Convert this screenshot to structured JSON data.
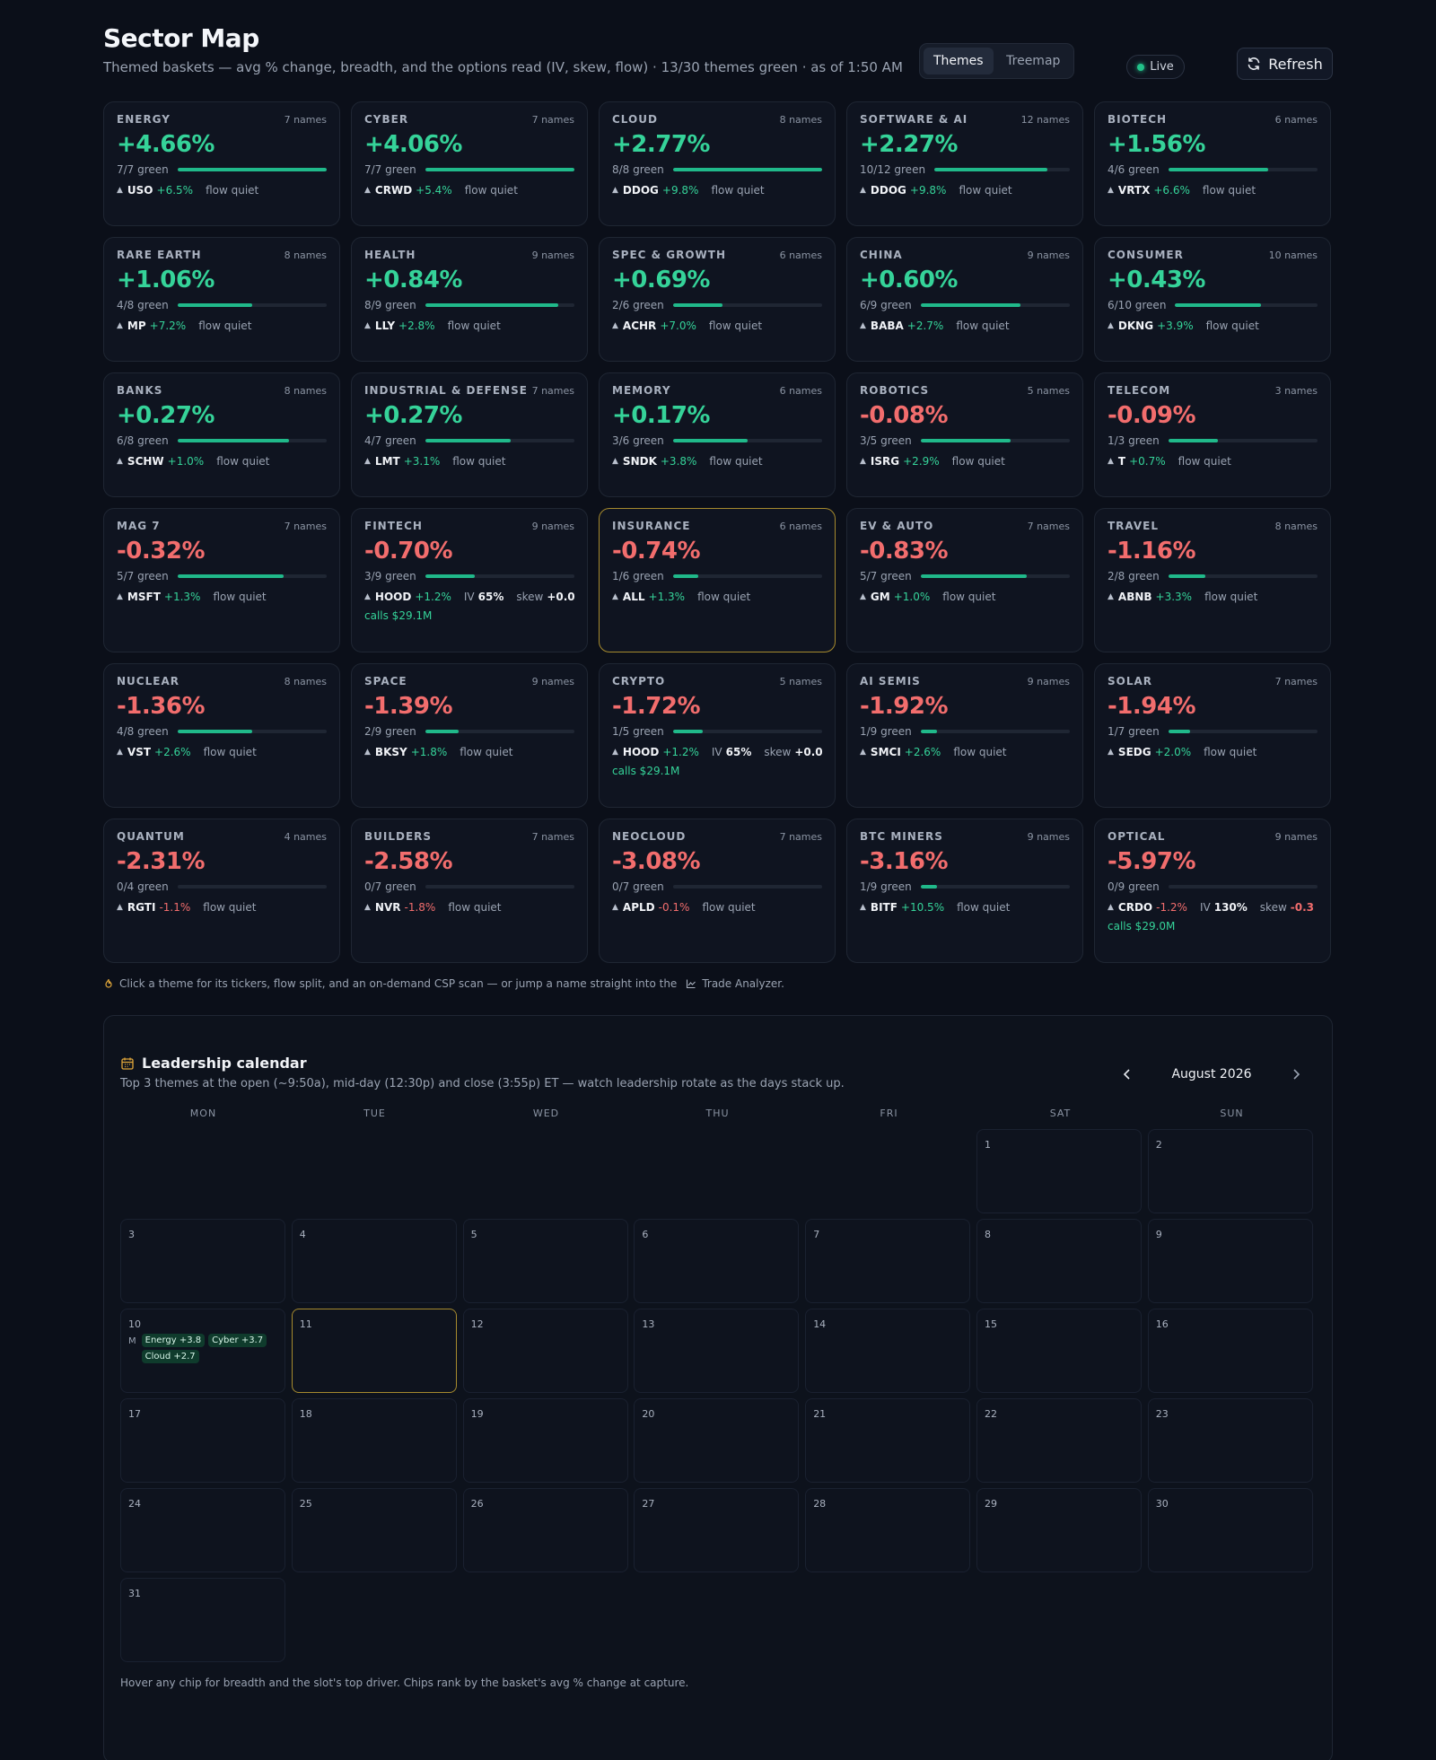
{
  "header": {
    "title": "Sector Map",
    "subtitle": "Themed baskets — avg % change, breadth, and the options read (IV, skew, flow) · 13/30 themes green · as of 1:50 AM",
    "tabs": [
      "Themes",
      "Treemap"
    ],
    "active_tab": "Themes",
    "live_label": "Live",
    "refresh_label": "Refresh"
  },
  "colors": {
    "positive": "#35d399",
    "negative": "#f26d6d",
    "accent": "#a68a2e",
    "bar": "#20b98a"
  },
  "themes": [
    {
      "name": "ENERGY",
      "count": "7 names",
      "pct": "+4.66%",
      "dir": "pos",
      "breadth": "7/7 green",
      "breadth_frac": 1.0,
      "ticker": "USO",
      "tchg": "+6.5%",
      "tdir": "pos",
      "flow": "flow quiet"
    },
    {
      "name": "CYBER",
      "count": "7 names",
      "pct": "+4.06%",
      "dir": "pos",
      "breadth": "7/7 green",
      "breadth_frac": 1.0,
      "ticker": "CRWD",
      "tchg": "+5.4%",
      "tdir": "pos",
      "flow": "flow quiet"
    },
    {
      "name": "CLOUD",
      "count": "8 names",
      "pct": "+2.77%",
      "dir": "pos",
      "breadth": "8/8 green",
      "breadth_frac": 1.0,
      "ticker": "DDOG",
      "tchg": "+9.8%",
      "tdir": "pos",
      "flow": "flow quiet"
    },
    {
      "name": "SOFTWARE & AI",
      "count": "12 names",
      "pct": "+2.27%",
      "dir": "pos",
      "breadth": "10/12 green",
      "breadth_frac": 0.833,
      "ticker": "DDOG",
      "tchg": "+9.8%",
      "tdir": "pos",
      "flow": "flow quiet"
    },
    {
      "name": "BIOTECH",
      "count": "6 names",
      "pct": "+1.56%",
      "dir": "pos",
      "breadth": "4/6 green",
      "breadth_frac": 0.667,
      "ticker": "VRTX",
      "tchg": "+6.6%",
      "tdir": "pos",
      "flow": "flow quiet"
    },
    {
      "name": "RARE EARTH",
      "count": "8 names",
      "pct": "+1.06%",
      "dir": "pos",
      "breadth": "4/8 green",
      "breadth_frac": 0.5,
      "ticker": "MP",
      "tchg": "+7.2%",
      "tdir": "pos",
      "flow": "flow quiet"
    },
    {
      "name": "HEALTH",
      "count": "9 names",
      "pct": "+0.84%",
      "dir": "pos",
      "breadth": "8/9 green",
      "breadth_frac": 0.889,
      "ticker": "LLY",
      "tchg": "+2.8%",
      "tdir": "pos",
      "flow": "flow quiet"
    },
    {
      "name": "SPEC & GROWTH",
      "count": "6 names",
      "pct": "+0.69%",
      "dir": "pos",
      "breadth": "2/6 green",
      "breadth_frac": 0.333,
      "ticker": "ACHR",
      "tchg": "+7.0%",
      "tdir": "pos",
      "flow": "flow quiet"
    },
    {
      "name": "CHINA",
      "count": "9 names",
      "pct": "+0.60%",
      "dir": "pos",
      "breadth": "6/9 green",
      "breadth_frac": 0.667,
      "ticker": "BABA",
      "tchg": "+2.7%",
      "tdir": "pos",
      "flow": "flow quiet"
    },
    {
      "name": "CONSUMER",
      "count": "10 names",
      "pct": "+0.43%",
      "dir": "pos",
      "breadth": "6/10 green",
      "breadth_frac": 0.6,
      "ticker": "DKNG",
      "tchg": "+3.9%",
      "tdir": "pos",
      "flow": "flow quiet"
    },
    {
      "name": "BANKS",
      "count": "8 names",
      "pct": "+0.27%",
      "dir": "pos",
      "breadth": "6/8 green",
      "breadth_frac": 0.75,
      "ticker": "SCHW",
      "tchg": "+1.0%",
      "tdir": "pos",
      "flow": "flow quiet"
    },
    {
      "name": "INDUSTRIAL & DEFENSE",
      "count": "7 names",
      "pct": "+0.27%",
      "dir": "pos",
      "breadth": "4/7 green",
      "breadth_frac": 0.571,
      "ticker": "LMT",
      "tchg": "+3.1%",
      "tdir": "pos",
      "flow": "flow quiet"
    },
    {
      "name": "MEMORY",
      "count": "6 names",
      "pct": "+0.17%",
      "dir": "pos",
      "breadth": "3/6 green",
      "breadth_frac": 0.5,
      "ticker": "SNDK",
      "tchg": "+3.8%",
      "tdir": "pos",
      "flow": "flow quiet"
    },
    {
      "name": "ROBOTICS",
      "count": "5 names",
      "pct": "-0.08%",
      "dir": "neg",
      "breadth": "3/5 green",
      "breadth_frac": 0.6,
      "ticker": "ISRG",
      "tchg": "+2.9%",
      "tdir": "pos",
      "flow": "flow quiet"
    },
    {
      "name": "TELECOM",
      "count": "3 names",
      "pct": "-0.09%",
      "dir": "neg",
      "breadth": "1/3 green",
      "breadth_frac": 0.333,
      "ticker": "T",
      "tchg": "+0.7%",
      "tdir": "pos",
      "flow": "flow quiet"
    },
    {
      "name": "MAG 7",
      "count": "7 names",
      "pct": "-0.32%",
      "dir": "neg",
      "breadth": "5/7 green",
      "breadth_frac": 0.714,
      "ticker": "MSFT",
      "tchg": "+1.3%",
      "tdir": "pos",
      "flow": "flow quiet"
    },
    {
      "name": "FINTECH",
      "count": "9 names",
      "pct": "-0.70%",
      "dir": "neg",
      "breadth": "3/9 green",
      "breadth_frac": 0.333,
      "ticker": "HOOD",
      "tchg": "+1.2%",
      "tdir": "pos",
      "iv_label": "IV",
      "iv": "65%",
      "skew_label": "skew",
      "skew": "+0.0",
      "skew_dir": "zero",
      "calls": "calls $29.1M"
    },
    {
      "name": "INSURANCE",
      "count": "6 names",
      "pct": "-0.74%",
      "dir": "neg",
      "breadth": "1/6 green",
      "breadth_frac": 0.167,
      "ticker": "ALL",
      "tchg": "+1.3%",
      "tdir": "pos",
      "flow": "flow quiet",
      "selected": true
    },
    {
      "name": "EV & AUTO",
      "count": "7 names",
      "pct": "-0.83%",
      "dir": "neg",
      "breadth": "5/7 green",
      "breadth_frac": 0.714,
      "ticker": "GM",
      "tchg": "+1.0%",
      "tdir": "pos",
      "flow": "flow quiet"
    },
    {
      "name": "TRAVEL",
      "count": "8 names",
      "pct": "-1.16%",
      "dir": "neg",
      "breadth": "2/8 green",
      "breadth_frac": 0.25,
      "ticker": "ABNB",
      "tchg": "+3.3%",
      "tdir": "pos",
      "flow": "flow quiet"
    },
    {
      "name": "NUCLEAR",
      "count": "8 names",
      "pct": "-1.36%",
      "dir": "neg",
      "breadth": "4/8 green",
      "breadth_frac": 0.5,
      "ticker": "VST",
      "tchg": "+2.6%",
      "tdir": "pos",
      "flow": "flow quiet"
    },
    {
      "name": "SPACE",
      "count": "9 names",
      "pct": "-1.39%",
      "dir": "neg",
      "breadth": "2/9 green",
      "breadth_frac": 0.222,
      "ticker": "BKSY",
      "tchg": "+1.8%",
      "tdir": "pos",
      "flow": "flow quiet"
    },
    {
      "name": "CRYPTO",
      "count": "5 names",
      "pct": "-1.72%",
      "dir": "neg",
      "breadth": "1/5 green",
      "breadth_frac": 0.2,
      "ticker": "HOOD",
      "tchg": "+1.2%",
      "tdir": "pos",
      "iv_label": "IV",
      "iv": "65%",
      "skew_label": "skew",
      "skew": "+0.0",
      "skew_dir": "zero",
      "calls": "calls $29.1M"
    },
    {
      "name": "AI SEMIS",
      "count": "9 names",
      "pct": "-1.92%",
      "dir": "neg",
      "breadth": "1/9 green",
      "breadth_frac": 0.111,
      "ticker": "SMCI",
      "tchg": "+2.6%",
      "tdir": "pos",
      "flow": "flow quiet"
    },
    {
      "name": "SOLAR",
      "count": "7 names",
      "pct": "-1.94%",
      "dir": "neg",
      "breadth": "1/7 green",
      "breadth_frac": 0.143,
      "ticker": "SEDG",
      "tchg": "+2.0%",
      "tdir": "pos",
      "flow": "flow quiet"
    },
    {
      "name": "QUANTUM",
      "count": "4 names",
      "pct": "-2.31%",
      "dir": "neg",
      "breadth": "0/4 green",
      "breadth_frac": 0.0,
      "ticker": "RGTI",
      "tchg": "-1.1%",
      "tdir": "neg",
      "flow": "flow quiet"
    },
    {
      "name": "BUILDERS",
      "count": "7 names",
      "pct": "-2.58%",
      "dir": "neg",
      "breadth": "0/7 green",
      "breadth_frac": 0.0,
      "ticker": "NVR",
      "tchg": "-1.8%",
      "tdir": "neg",
      "flow": "flow quiet"
    },
    {
      "name": "NEOCLOUD",
      "count": "7 names",
      "pct": "-3.08%",
      "dir": "neg",
      "breadth": "0/7 green",
      "breadth_frac": 0.0,
      "ticker": "APLD",
      "tchg": "-0.1%",
      "tdir": "neg",
      "flow": "flow quiet"
    },
    {
      "name": "BTC MINERS",
      "count": "9 names",
      "pct": "-3.16%",
      "dir": "neg",
      "breadth": "1/9 green",
      "breadth_frac": 0.111,
      "ticker": "BITF",
      "tchg": "+10.5%",
      "tdir": "pos",
      "flow": "flow quiet"
    },
    {
      "name": "OPTICAL",
      "count": "9 names",
      "pct": "-5.97%",
      "dir": "neg",
      "breadth": "0/9 green",
      "breadth_frac": 0.0,
      "ticker": "CRDO",
      "tchg": "-1.2%",
      "tdir": "neg",
      "iv_label": "IV",
      "iv": "130%",
      "skew_label": "skew",
      "skew": "-0.3",
      "skew_dir": "neg",
      "calls": "calls $29.0M"
    }
  ],
  "hint": {
    "text": "Click a theme for its tickers, flow split, and an on-demand CSP scan — or jump a name straight into the",
    "link": "Trade Analyzer."
  },
  "calendar": {
    "title": "Leadership calendar",
    "subtitle": "Top 3 themes at the open (~9:50a), mid-day (12:30p) and close (3:55p) ET — watch leadership rotate as the days stack up.",
    "month": "August 2026",
    "weekdays": [
      "MON",
      "TUE",
      "WED",
      "THU",
      "FRI",
      "SAT",
      "SUN"
    ],
    "first_weekday_offset": 5,
    "days_in_month": 31,
    "today": 11,
    "entries": {
      "10": [
        {
          "slot": "M",
          "chips": [
            "Energy +3.8",
            "Cyber +3.7",
            "Cloud +2.7"
          ]
        }
      ]
    },
    "footer": "Hover any chip for breadth and the slot's top driver. Chips rank by the basket's avg % change at capture."
  }
}
